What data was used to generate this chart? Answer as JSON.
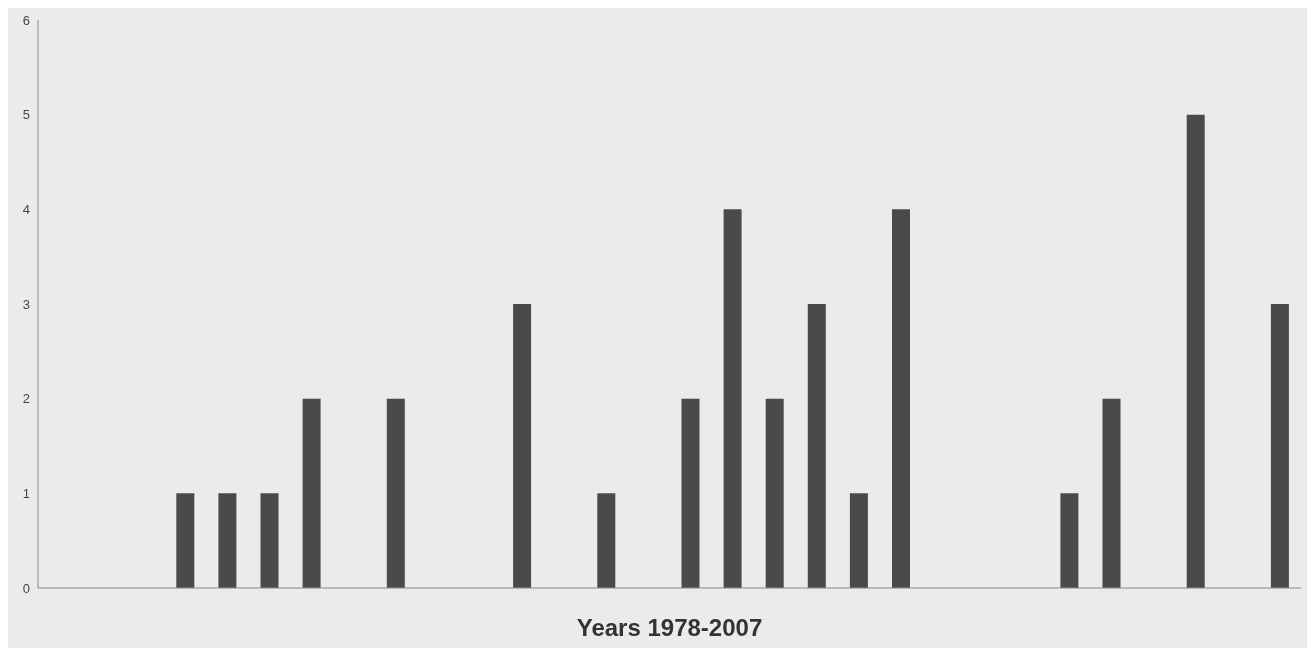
{
  "chart_data": {
    "type": "bar",
    "xlabel": "Years 1978-2007",
    "categories": [
      null,
      null,
      null,
      null,
      null,
      null,
      null,
      null,
      null,
      null,
      null,
      null,
      null,
      null,
      null,
      null,
      null,
      null,
      null,
      null,
      null,
      null,
      null,
      null,
      null,
      null,
      null,
      null,
      null,
      null
    ],
    "values": [
      0,
      0,
      0,
      1,
      1,
      1,
      2,
      0,
      2,
      0,
      0,
      3,
      0,
      1,
      0,
      2,
      4,
      2,
      3,
      1,
      4,
      0,
      0,
      0,
      1,
      2,
      0,
      5,
      0,
      3
    ],
    "color": "#4a4a4a",
    "ylim": [
      0,
      6
    ],
    "yticks": [
      0,
      1,
      2,
      3,
      4,
      5,
      6
    ],
    "grid": false,
    "legend": false,
    "tick_labels": "y"
  }
}
